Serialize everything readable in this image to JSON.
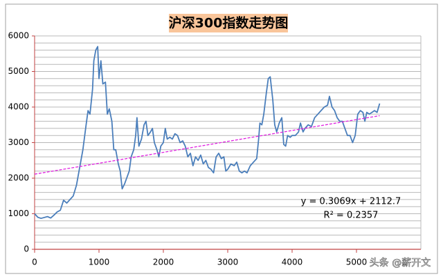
{
  "chart_data": {
    "type": "line",
    "title": "沪深300指数走势图",
    "x": [
      0,
      50,
      100,
      200,
      250,
      300,
      350,
      400,
      450,
      500,
      550,
      600,
      650,
      700,
      750,
      800,
      830,
      860,
      900,
      920,
      950,
      980,
      1000,
      1030,
      1060,
      1100,
      1130,
      1160,
      1200,
      1230,
      1260,
      1300,
      1330,
      1360,
      1400,
      1430,
      1470,
      1500,
      1540,
      1570,
      1590,
      1620,
      1660,
      1700,
      1730,
      1760,
      1800,
      1830,
      1860,
      1900,
      1930,
      1960,
      2000,
      2030,
      2060,
      2100,
      2140,
      2180,
      2220,
      2260,
      2300,
      2340,
      2380,
      2420,
      2460,
      2500,
      2540,
      2580,
      2620,
      2660,
      2700,
      2740,
      2780,
      2820,
      2860,
      2900,
      2940,
      2970,
      3000,
      3050,
      3100,
      3140,
      3180,
      3220,
      3260,
      3300,
      3350,
      3400,
      3450,
      3480,
      3500,
      3530,
      3560,
      3600,
      3630,
      3660,
      3700,
      3730,
      3760,
      3800,
      3840,
      3870,
      3900,
      3930,
      3970,
      4000,
      4050,
      4100,
      4130,
      4170,
      4200,
      4250,
      4300,
      4350,
      4400,
      4450,
      4500,
      4550,
      4580,
      4620,
      4660,
      4700,
      4740,
      4780,
      4820,
      4860,
      4900,
      4940,
      4980,
      5020,
      5060,
      5100,
      5130,
      5160,
      5200,
      5240,
      5280,
      5320,
      5360
    ],
    "series": [
      {
        "color": "#4a7ebb",
        "values": [
          1000,
          900,
          870,
          920,
          880,
          960,
          1050,
          1100,
          1380,
          1300,
          1400,
          1500,
          1800,
          2300,
          2800,
          3500,
          3900,
          3800,
          4500,
          5300,
          5600,
          5700,
          4800,
          5300,
          4650,
          4700,
          3800,
          3950,
          3600,
          2800,
          2800,
          2400,
          2200,
          1700,
          1850,
          2000,
          2200,
          2600,
          2800,
          3200,
          3700,
          2900,
          3100,
          3500,
          3600,
          3200,
          3300,
          3400,
          3000,
          2800,
          2600,
          2900,
          3000,
          3400,
          3100,
          3150,
          3100,
          3250,
          3200,
          3000,
          3050,
          2900,
          2600,
          2700,
          2350,
          2600,
          2500,
          2650,
          2400,
          2500,
          2300,
          2250,
          2150,
          2600,
          2700,
          2550,
          2600,
          2200,
          2250,
          2400,
          2350,
          2450,
          2200,
          2150,
          2200,
          2150,
          2350,
          2450,
          2550,
          3100,
          3550,
          3500,
          3800,
          4400,
          4800,
          4850,
          4200,
          3500,
          3300,
          3550,
          3700,
          2950,
          2900,
          3200,
          3150,
          3200,
          3200,
          3300,
          3550,
          3300,
          3400,
          3500,
          3450,
          3700,
          3800,
          3900,
          4000,
          4050,
          4300,
          4000,
          3900,
          3700,
          3600,
          3600,
          3400,
          3200,
          3200,
          3000,
          3200,
          3800,
          3900,
          3850,
          3600,
          3850,
          3800,
          3850,
          3900,
          3850,
          4100
        ]
      }
    ],
    "trendline": {
      "slope": 0.3069,
      "intercept": 2112.7,
      "color": "#e020e0",
      "equation": "y = 0.3069x + 2112.7",
      "r_squared": "R² = 0.2357"
    },
    "xlim": [
      0,
      6000
    ],
    "xticks": [
      0,
      1000,
      2000,
      3000,
      4000,
      5000
    ],
    "ylim": [
      0,
      6000
    ],
    "yticks": [
      0,
      1000,
      2000,
      3000,
      4000,
      5000,
      6000
    ],
    "ygrid": [
      200,
      400,
      600,
      800,
      1000,
      1200,
      1400,
      1600,
      1800,
      2000,
      2200,
      2400,
      2600,
      2800,
      3000,
      3200,
      3400,
      3600,
      3800,
      4000,
      4200,
      4400,
      4600,
      4800,
      5000,
      5200,
      5400,
      5600,
      5800,
      6000
    ],
    "grid": true,
    "watermark": "头条 @薪开文"
  }
}
